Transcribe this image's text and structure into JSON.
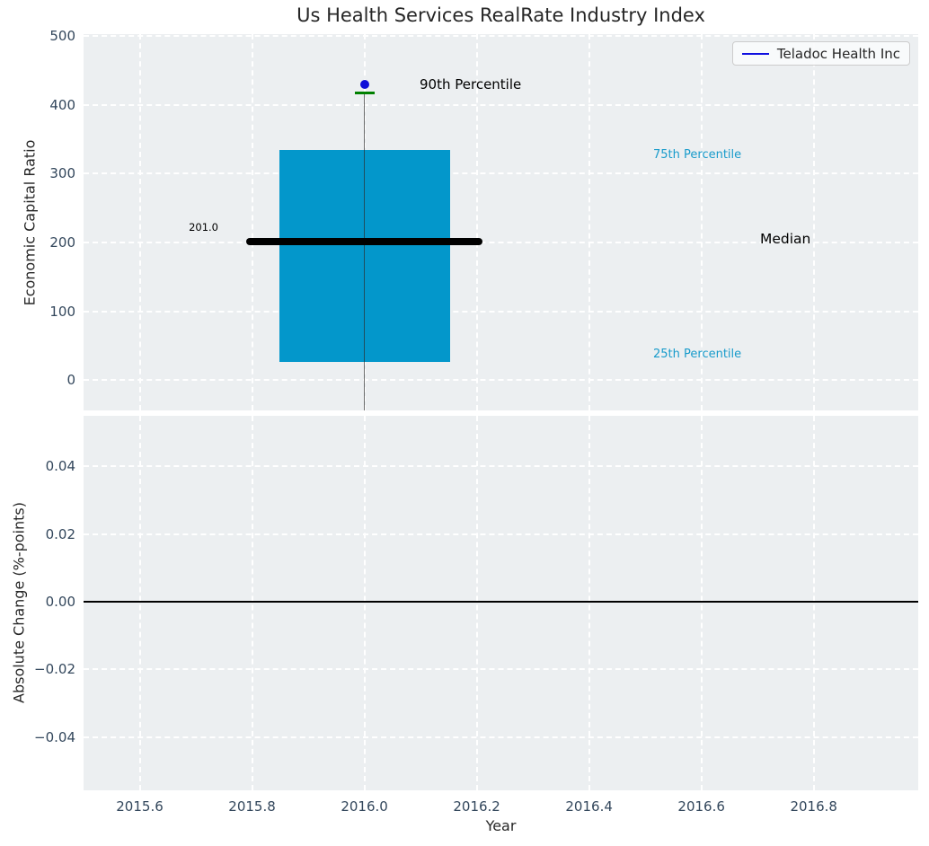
{
  "figure": {
    "title": "Us Health Services RealRate Industry Index",
    "legend": {
      "label": "Teladoc Health Inc"
    }
  },
  "colors": {
    "plot_bg": "#eceff1",
    "grid": "#ffffff",
    "tick_label": "#33475c",
    "text": "#262626",
    "box_fill": "#0397cb",
    "whisker_cap_green": "#008000",
    "marker_blue": "#0f0fd8",
    "legend_line_blue": "#0f0fe0",
    "median_black": "#000000",
    "percentile_label_cyan": "#189bcb",
    "zero_line_black": "#000000"
  },
  "chart_data": [
    {
      "type": "boxplot",
      "title": "Us Health Services RealRate Industry Index",
      "ylabel": "Economic Capital Ratio",
      "ylim": [
        -44,
        503
      ],
      "yticks": [
        500,
        400,
        300,
        200,
        100,
        0
      ],
      "ytick_labels": [
        "500",
        "400",
        "300",
        "200",
        "100",
        "0"
      ],
      "xlim": [
        2015.5,
        2016.986
      ],
      "xticks": [
        2015.6,
        2015.8,
        2016.0,
        2016.2,
        2016.4,
        2016.6,
        2016.8
      ],
      "grid": true,
      "legend_position": "upper right",
      "series": {
        "name": "Teladoc Health Inc",
        "x_center": 2016.0,
        "p90_marker": 430,
        "whisker_top": 418,
        "p75": 334,
        "median": 201.0,
        "p25": 27,
        "whisker_bottom": -44,
        "box_halfwidth_years": 0.152,
        "median_halfwidth_years": 0.205,
        "cap_halfwidth_years": 0.0176
      },
      "annotations": {
        "p90": {
          "text": "90th Percentile"
        },
        "p75": {
          "text": "75th Percentile"
        },
        "median": {
          "text": "Median"
        },
        "p25": {
          "text": "25th Percentile"
        },
        "median_value": {
          "text": "201.0"
        }
      }
    },
    {
      "type": "line",
      "xlabel": "Year",
      "ylabel": "Absolute Change (%-points)",
      "ylim": [
        -0.0558,
        0.055
      ],
      "yticks": [
        0.04,
        0.02,
        0.0,
        -0.02,
        -0.04
      ],
      "ytick_labels": [
        "0.04",
        "0.02",
        "0.00",
        "−0.02",
        "−0.04"
      ],
      "xticks": [
        2015.6,
        2015.8,
        2016.0,
        2016.2,
        2016.4,
        2016.6,
        2016.8
      ],
      "xtick_labels": [
        "2015.6",
        "2015.8",
        "2016.0",
        "2016.2",
        "2016.4",
        "2016.6",
        "2016.8"
      ],
      "grid": true,
      "zero_line_y": 0.0
    }
  ]
}
